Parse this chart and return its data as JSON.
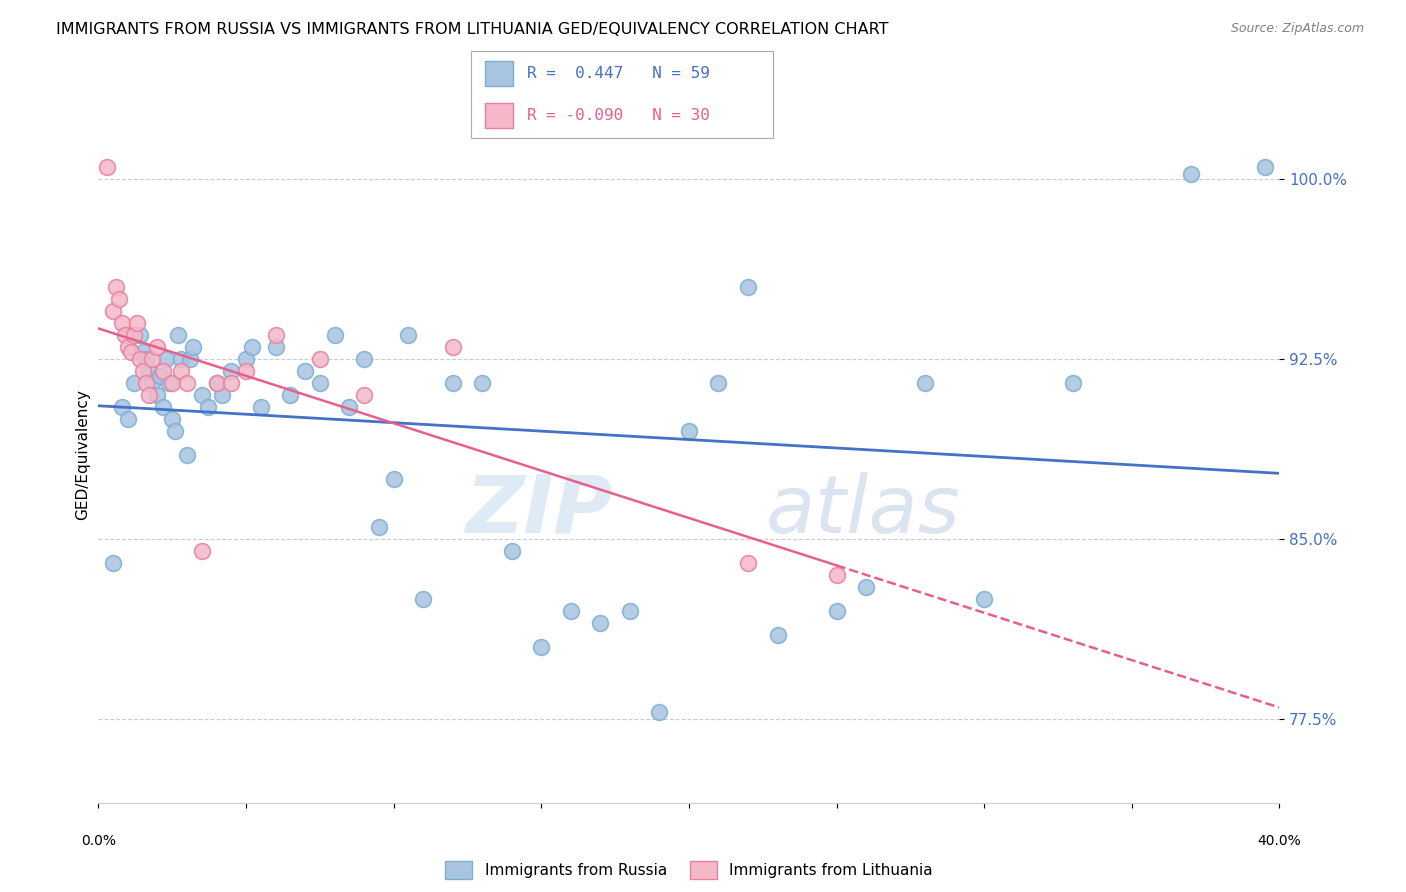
{
  "title": "IMMIGRANTS FROM RUSSIA VS IMMIGRANTS FROM LITHUANIA GED/EQUIVALENCY CORRELATION CHART",
  "source": "Source: ZipAtlas.com",
  "ylabel": "GED/Equivalency",
  "yticks": [
    77.5,
    85.0,
    92.5,
    100.0
  ],
  "ytick_labels": [
    "77.5%",
    "85.0%",
    "92.5%",
    "100.0%"
  ],
  "xmin": 0.0,
  "xmax": 40.0,
  "ymin": 74.0,
  "ymax": 103.0,
  "r_russia": 0.447,
  "n_russia": 59,
  "r_lithuania": -0.09,
  "n_lithuania": 30,
  "color_russia": "#a8c4e0",
  "color_russia_edge": "#7bafd4",
  "color_russia_line": "#4472c4",
  "color_lithuania": "#f4b8c8",
  "color_lithuania_edge": "#e87fa0",
  "color_lithuania_line": "#e8608a",
  "watermark_zip": "ZIP",
  "watermark_atlas": "atlas",
  "russia_x": [
    0.5,
    0.8,
    1.0,
    1.2,
    1.4,
    1.5,
    1.6,
    1.7,
    1.8,
    2.0,
    2.1,
    2.2,
    2.3,
    2.4,
    2.5,
    2.6,
    2.7,
    2.8,
    3.0,
    3.1,
    3.2,
    3.5,
    3.7,
    4.0,
    4.2,
    4.5,
    5.0,
    5.2,
    5.5,
    6.0,
    6.5,
    7.0,
    7.5,
    8.0,
    8.5,
    9.0,
    9.5,
    10.0,
    10.5,
    11.0,
    12.0,
    13.0,
    14.0,
    15.0,
    16.0,
    17.0,
    18.0,
    19.0,
    20.0,
    21.0,
    22.0,
    23.0,
    25.0,
    26.0,
    28.0,
    30.0,
    33.0,
    37.0,
    39.5
  ],
  "russia_y": [
    84.0,
    90.5,
    90.0,
    91.5,
    93.5,
    92.8,
    92.5,
    92.0,
    91.5,
    91.0,
    91.8,
    90.5,
    92.5,
    91.5,
    90.0,
    89.5,
    93.5,
    92.5,
    88.5,
    92.5,
    93.0,
    91.0,
    90.5,
    91.5,
    91.0,
    92.0,
    92.5,
    93.0,
    90.5,
    93.0,
    91.0,
    92.0,
    91.5,
    93.5,
    90.5,
    92.5,
    85.5,
    87.5,
    93.5,
    82.5,
    91.5,
    91.5,
    84.5,
    80.5,
    82.0,
    81.5,
    82.0,
    77.8,
    89.5,
    91.5,
    95.5,
    81.0,
    82.0,
    83.0,
    91.5,
    82.5,
    91.5,
    100.2,
    100.5
  ],
  "lithuania_x": [
    0.3,
    0.5,
    0.6,
    0.7,
    0.8,
    0.9,
    1.0,
    1.1,
    1.2,
    1.3,
    1.4,
    1.5,
    1.6,
    1.7,
    1.8,
    2.0,
    2.2,
    2.5,
    2.8,
    3.0,
    3.5,
    4.0,
    4.5,
    5.0,
    6.0,
    7.5,
    9.0,
    12.0,
    22.0,
    25.0
  ],
  "lithuania_y": [
    100.5,
    94.5,
    95.5,
    95.0,
    94.0,
    93.5,
    93.0,
    92.8,
    93.5,
    94.0,
    92.5,
    92.0,
    91.5,
    91.0,
    92.5,
    93.0,
    92.0,
    91.5,
    92.0,
    91.5,
    84.5,
    91.5,
    91.5,
    92.0,
    93.5,
    92.5,
    91.0,
    93.0,
    84.0,
    83.5
  ],
  "legend_label_russia": "Immigrants from Russia",
  "legend_label_lithuania": "Immigrants from Lithuania"
}
